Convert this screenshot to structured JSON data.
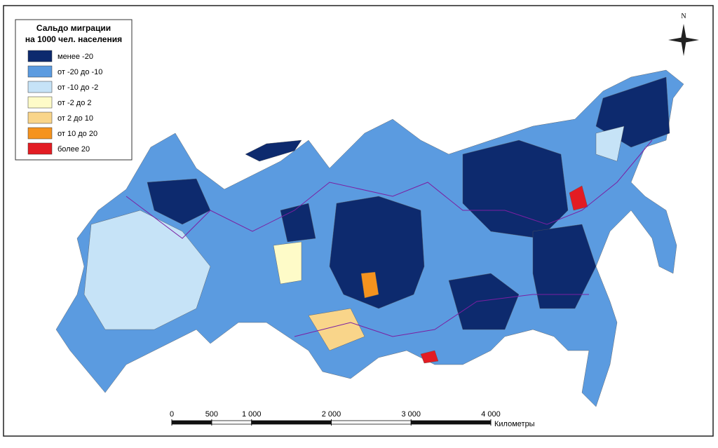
{
  "legend": {
    "title_lines": [
      "Сальдо миграции",
      "на 1000 чел. населения"
    ],
    "items": [
      {
        "label": "менее -20",
        "color": "#0d2a6e"
      },
      {
        "label": "от -20 до -10",
        "color": "#5b9be0"
      },
      {
        "label": "от -10 до -2",
        "color": "#c6e3f7"
      },
      {
        "label": "от -2 до 2",
        "color": "#fefbc8"
      },
      {
        "label": "от 2 до 10",
        "color": "#f9d58a"
      },
      {
        "label": "от 10 до 20",
        "color": "#f5931e"
      },
      {
        "label": "более 20",
        "color": "#e31c23"
      }
    ]
  },
  "north": "N",
  "scale": {
    "ticks": [
      {
        "value": 0,
        "label": "0"
      },
      {
        "value": 500,
        "label": "500"
      },
      {
        "value": 1000,
        "label": "1 000"
      },
      {
        "value": 2000,
        "label": "2 000"
      },
      {
        "value": 3000,
        "label": "3 000"
      },
      {
        "value": 4000,
        "label": "4 000"
      }
    ],
    "unit": "Километры"
  }
}
